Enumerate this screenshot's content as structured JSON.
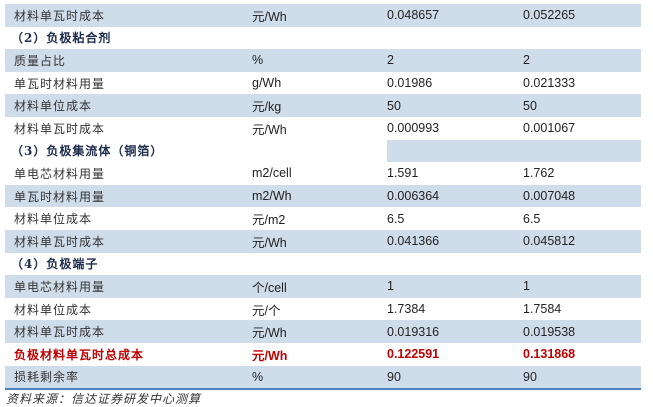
{
  "rows": [
    {
      "type": "data",
      "shade": true,
      "label": "材料单瓦时成本",
      "unit": "元/Wh",
      "v1": "0.048657",
      "v2": "0.052265"
    },
    {
      "type": "header",
      "label": "（2）负极粘合剂"
    },
    {
      "type": "data",
      "shade": true,
      "label": "质量占比",
      "unit": "%",
      "v1": "2",
      "v2": "2"
    },
    {
      "type": "data",
      "shade": false,
      "label": "单瓦时材料用量",
      "unit": "g/Wh",
      "v1": "0.01986",
      "v2": "0.021333"
    },
    {
      "type": "data",
      "shade": true,
      "label": "材料单位成本",
      "unit": "元/kg",
      "v1": "50",
      "v2": "50"
    },
    {
      "type": "data",
      "shade": false,
      "label": "材料单瓦时成本",
      "unit": "元/Wh",
      "v1": "0.000993",
      "v2": "0.001067"
    },
    {
      "type": "header",
      "split": true,
      "label": "（3）负极集流体（铜箔）"
    },
    {
      "type": "data",
      "shade": false,
      "label": "单电芯材料用量",
      "unit": "m2/cell",
      "v1": "1.591",
      "v2": "1.762"
    },
    {
      "type": "data",
      "shade": true,
      "label": "单瓦时材料用量",
      "unit": "m2/Wh",
      "v1": "0.006364",
      "v2": "0.007048"
    },
    {
      "type": "data",
      "shade": false,
      "label": "材料单位成本",
      "unit": "元/m2",
      "v1": "6.5",
      "v2": "6.5"
    },
    {
      "type": "data",
      "shade": true,
      "label": "材料单瓦时成本",
      "unit": "元/Wh",
      "v1": "0.041366",
      "v2": "0.045812"
    },
    {
      "type": "header",
      "label": "（4）负极端子"
    },
    {
      "type": "data",
      "shade": true,
      "label": "单电芯材料用量",
      "unit": "个/cell",
      "v1": "1",
      "v2": "1"
    },
    {
      "type": "data",
      "shade": false,
      "label": "材料单位成本",
      "unit": "元/个",
      "v1": "1.7384",
      "v2": "1.7584"
    },
    {
      "type": "data",
      "shade": true,
      "label": "材料单瓦时成本",
      "unit": "元/Wh",
      "v1": "0.019316",
      "v2": "0.019538"
    },
    {
      "type": "data",
      "shade": false,
      "red": true,
      "label": "负极材料单瓦时总成本",
      "unit": "元/Wh",
      "v1": "0.122591",
      "v2": "0.131868"
    },
    {
      "type": "data",
      "shade": true,
      "label": "损耗剩余率",
      "unit": "%",
      "v1": "90",
      "v2": "90"
    }
  ],
  "source": "资料来源：信达证券研发中心测算",
  "colors": {
    "shade": "#cfdcea",
    "highlight": "#c00000",
    "rule": "#4f81bd"
  }
}
